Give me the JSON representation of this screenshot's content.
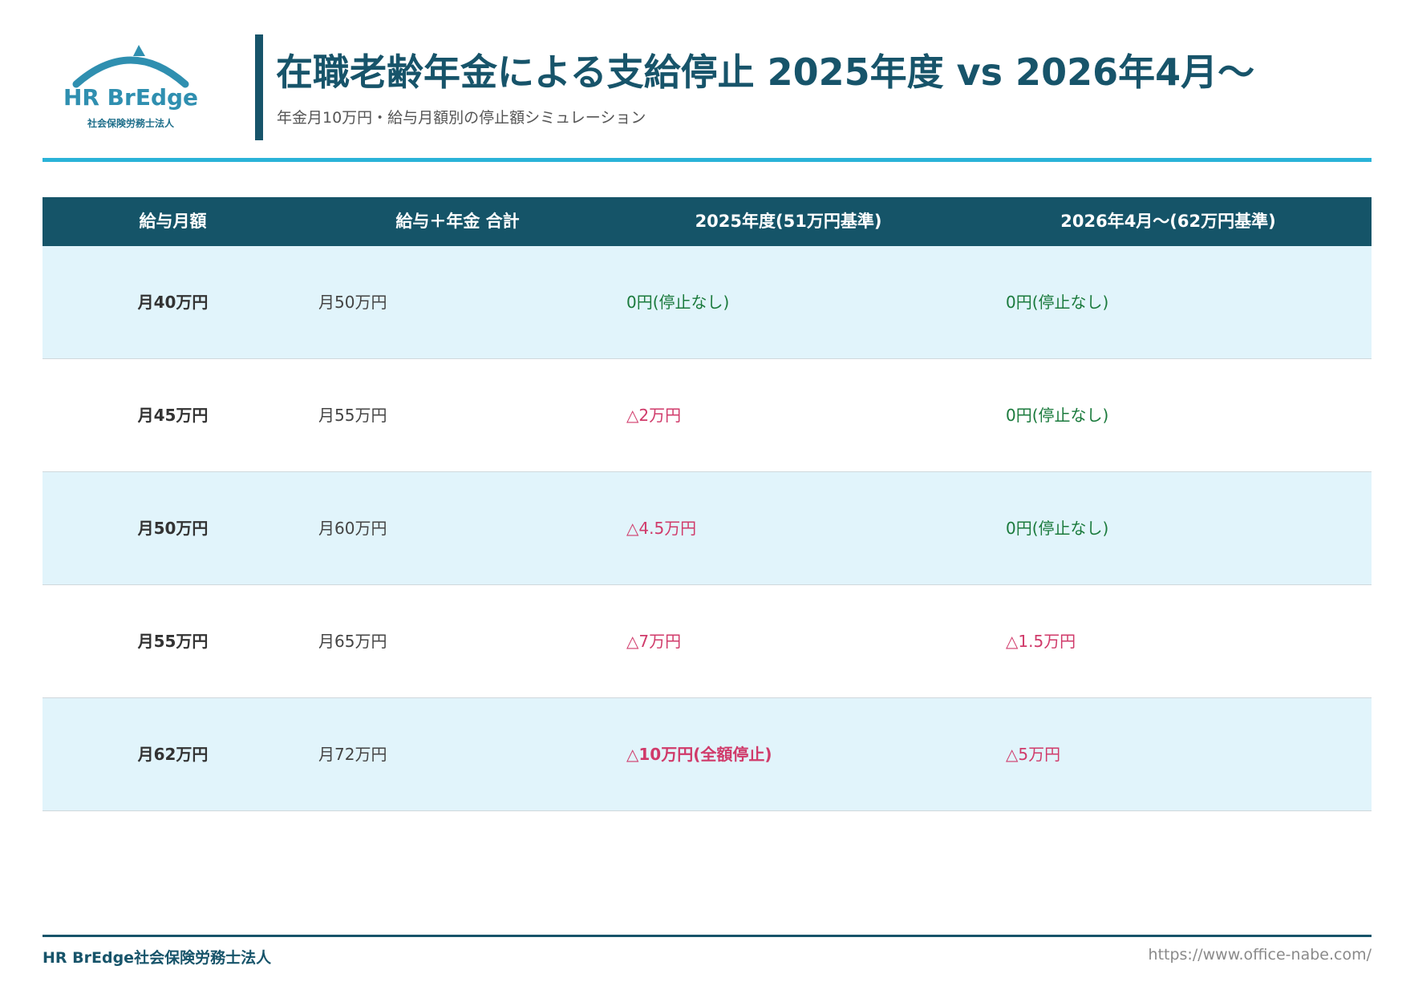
{
  "logo": {
    "name": "HR BrEdge",
    "sub": "社会保険労務士法人",
    "color": "#2f8fb0"
  },
  "header": {
    "title": "在職老齢年金による支給停止 2025年度 vs 2026年4月〜",
    "subtitle": "年金月10万円・給与月額別の停止額シミュレーション"
  },
  "table": {
    "columns": [
      "給与月額",
      "給与＋年金 合計",
      "2025年度(51万円基準)",
      "2026年4月〜(62万円基準)"
    ],
    "rows": [
      {
        "salary": "月40万円",
        "total": "月50万円",
        "y2025": "0円(停止なし)",
        "y2026": "0円(停止なし)"
      },
      {
        "salary": "月45万円",
        "total": "月55万円",
        "y2025": "△2万円",
        "y2026": "0円(停止なし)"
      },
      {
        "salary": "月50万円",
        "total": "月60万円",
        "y2025": "△4.5万円",
        "y2026": "0円(停止なし)"
      },
      {
        "salary": "月55万円",
        "total": "月65万円",
        "y2025": "△7万円",
        "y2026": "△1.5万円"
      },
      {
        "salary": "月62万円",
        "total": "月72万円",
        "y2025": "△10万円(全額停止)",
        "y2026": "△5万円"
      }
    ]
  },
  "footer": {
    "left": "HR BrEdge社会保険労務士法人",
    "right": "https://www.office-nabe.com/"
  },
  "colors": {
    "header_bg": "#155468",
    "accent_rule": "#2ab3d8",
    "alt_row": "#e1f4fb",
    "ok_text": "#1a7a3c",
    "stop_text": "#d03a6a"
  }
}
